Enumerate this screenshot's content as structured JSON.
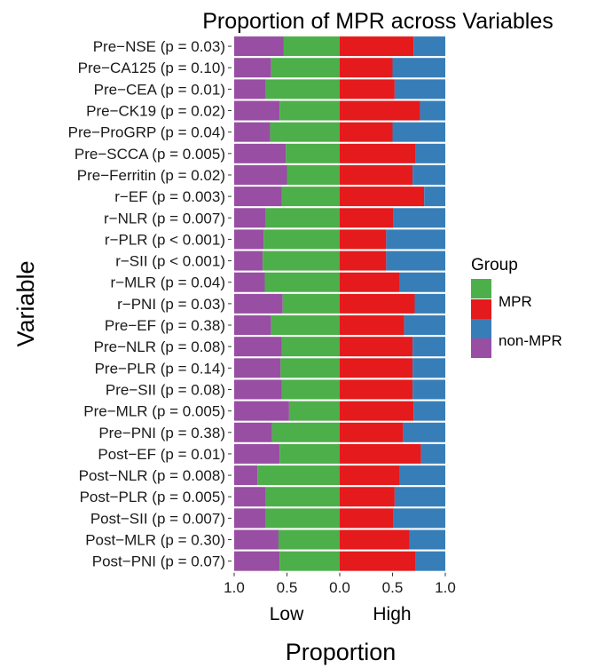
{
  "chart_data": {
    "type": "bar",
    "orientation": "horizontal-diverging",
    "title": "Proportion of MPR across Variables",
    "xlabel": "Proportion",
    "ylabel": "Variable",
    "side_labels": [
      "Low",
      "High"
    ],
    "x_ticks": [
      "1.0",
      "0.5",
      "0.0",
      "0.5",
      "1.0"
    ],
    "xlim": [
      -1,
      1
    ],
    "grid": false,
    "legend": {
      "title": "Group",
      "placement": "right",
      "entries": [
        "MPR",
        "non-MPR"
      ]
    },
    "colors": {
      "low_mpr": "#984ea3",
      "low_non_mpr": "#4daf4a",
      "high_mpr": "#e41a1c",
      "high_non_mpr": "#377eb8",
      "legend_mpr_left": "#4daf4a",
      "legend_mpr_right": "#e41a1c",
      "legend_non_mpr_left": "#984ea3",
      "legend_non_mpr_right": "#377eb8"
    },
    "categories": [
      "Pre−NSE (p = 0.03)",
      "Pre−CA125 (p = 0.10)",
      "Pre−CEA (p = 0.01)",
      "Pre−CK19 (p = 0.02)",
      "Pre−ProGRP (p = 0.04)",
      "Pre−SCCA (p = 0.005)",
      "Pre−Ferritin (p = 0.02)",
      "r−EF (p = 0.003)",
      "r−NLR (p = 0.007)",
      "r−PLR (p < 0.001)",
      "r−SII (p < 0.001)",
      "r−MLR (p = 0.04)",
      "r−PNI (p = 0.03)",
      "Pre−EF (p = 0.38)",
      "Pre−NLR (p = 0.08)",
      "Pre−PLR (p = 0.14)",
      "Pre−SII (p = 0.08)",
      "Pre−MLR (p = 0.005)",
      "Pre−PNI (p = 0.38)",
      "Post−EF (p = 0.01)",
      "Post−NLR (p = 0.008)",
      "Post−PLR (p = 0.005)",
      "Post−SII (p = 0.007)",
      "Post−MLR (p = 0.30)",
      "Post−PNI (p = 0.07)"
    ],
    "series": [
      {
        "side": "Low",
        "group": "MPR",
        "values": [
          0.53,
          0.65,
          0.7,
          0.57,
          0.66,
          0.51,
          0.5,
          0.55,
          0.7,
          0.72,
          0.73,
          0.71,
          0.54,
          0.65,
          0.55,
          0.56,
          0.55,
          0.48,
          0.64,
          0.57,
          0.78,
          0.7,
          0.7,
          0.58,
          0.57
        ]
      },
      {
        "side": "Low",
        "group": "non-MPR",
        "values": [
          0.47,
          0.35,
          0.3,
          0.43,
          0.34,
          0.49,
          0.5,
          0.45,
          0.3,
          0.28,
          0.27,
          0.29,
          0.46,
          0.35,
          0.45,
          0.44,
          0.45,
          0.52,
          0.36,
          0.43,
          0.22,
          0.3,
          0.3,
          0.42,
          0.43
        ]
      },
      {
        "side": "High",
        "group": "MPR",
        "values": [
          0.7,
          0.5,
          0.52,
          0.76,
          0.5,
          0.72,
          0.69,
          0.8,
          0.51,
          0.44,
          0.44,
          0.57,
          0.71,
          0.61,
          0.69,
          0.69,
          0.69,
          0.7,
          0.6,
          0.77,
          0.57,
          0.52,
          0.51,
          0.66,
          0.72
        ]
      },
      {
        "side": "High",
        "group": "non-MPR",
        "values": [
          0.3,
          0.5,
          0.48,
          0.24,
          0.5,
          0.28,
          0.31,
          0.2,
          0.49,
          0.56,
          0.56,
          0.43,
          0.29,
          0.39,
          0.31,
          0.31,
          0.31,
          0.3,
          0.4,
          0.23,
          0.43,
          0.48,
          0.49,
          0.34,
          0.28
        ]
      }
    ]
  }
}
